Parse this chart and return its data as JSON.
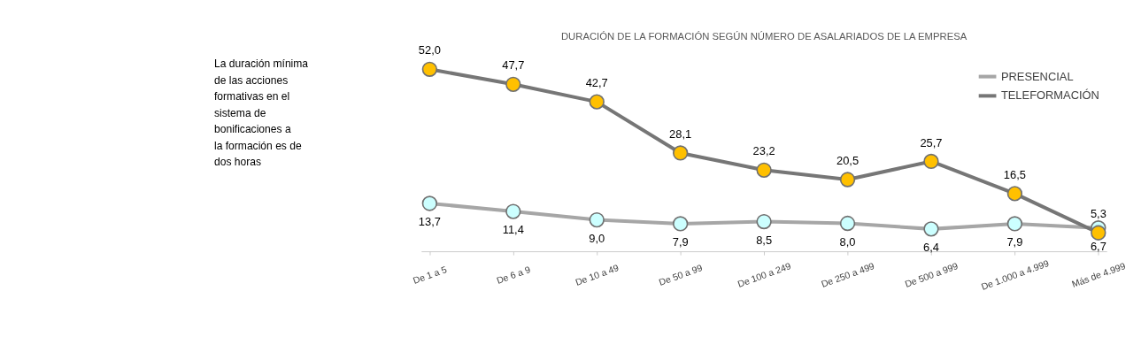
{
  "chart_data": {
    "type": "line",
    "title": "DURACIÓN DE LA FORMACIÓN SEGÚN NÚMERO DE ASALARIADOS DE LA EMPRESA",
    "categories": [
      "De 1 a 5",
      "De 6 a 9",
      "De 10 a 49",
      "De 50 a 99",
      "De 100 a 249",
      "De 250 a 499",
      "De 500 a 999",
      "De 1.000 a 4.999",
      "Más de 4.999"
    ],
    "series": [
      {
        "name": "PRESENCIAL",
        "color": "#a6a6a6",
        "colors": [
          "#ccffff",
          "#ccffff",
          "#ccffff",
          "#ccffff",
          "#ccffff",
          "#ccffff",
          "#ccffff",
          "#ccffff",
          "#ccffff"
        ],
        "values": [
          13.7,
          11.4,
          9.0,
          7.9,
          8.5,
          8.0,
          6.4,
          7.9,
          6.7
        ],
        "value_labels": [
          "13,7",
          "11,4",
          "9,0",
          "7,9",
          "8,5",
          "8,0",
          "6,4",
          "7,9",
          "6,7"
        ]
      },
      {
        "name": "TELEFORMACIÓN",
        "color": "#767676",
        "colors": [
          "#ffc000",
          "#ffc000",
          "#ffc000",
          "#ffc000",
          "#ffc000",
          "#ffc000",
          "#ffc000",
          "#ffc000",
          "#ffc000"
        ],
        "values": [
          52.0,
          47.7,
          42.7,
          28.1,
          23.2,
          20.5,
          25.7,
          16.5,
          5.3
        ],
        "value_labels": [
          "52,0",
          "47,7",
          "42,7",
          "28,1",
          "23,2",
          "20,5",
          "25,7",
          "16,5",
          "5,3"
        ]
      }
    ],
    "annotations": [
      "La duración mínima de las acciones formativas en el sistema de bonificaciones a la formación es de dos horas"
    ],
    "marker": "circle",
    "legend": "top right",
    "grid": false,
    "line_style": "solid"
  }
}
